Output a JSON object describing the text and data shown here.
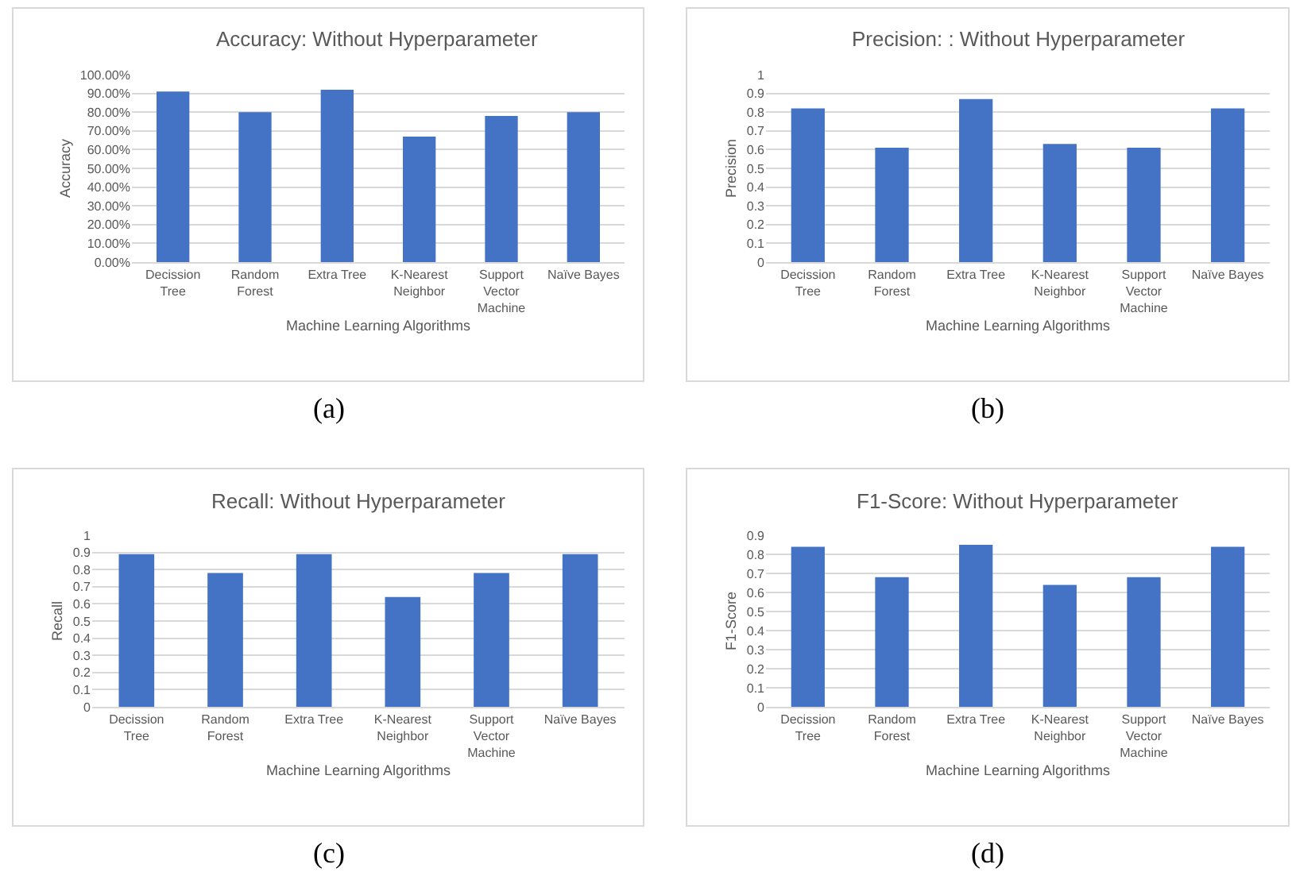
{
  "chart_data": [
    {
      "type": "bar",
      "title": "Accuracy: Without Hyperparameter",
      "xlabel": "Machine Learning Algorithms",
      "ylabel": "Accuracy",
      "categories": [
        "Decission Tree",
        "Random Forest",
        "Extra Tree",
        "K-Nearest Neighbor",
        "Support Vector Machine",
        "Naïve Bayes"
      ],
      "values": [
        91,
        80,
        92,
        67,
        78,
        80
      ],
      "color": "#4472c4",
      "ylim": [
        0,
        100
      ],
      "yticks": [
        {
          "value": 0,
          "label": "0.00%"
        },
        {
          "value": 10,
          "label": "10.00%"
        },
        {
          "value": 20,
          "label": "20.00%"
        },
        {
          "value": 30,
          "label": "30.00%"
        },
        {
          "value": 40,
          "label": "40.00%"
        },
        {
          "value": 50,
          "label": "50.00%"
        },
        {
          "value": 60,
          "label": "60.00%"
        },
        {
          "value": 70,
          "label": "70.00%"
        },
        {
          "value": 80,
          "label": "80.00%"
        },
        {
          "value": 90,
          "label": "90.00%"
        },
        {
          "value": 100,
          "label": "100.00%"
        }
      ],
      "grid": "y",
      "annotations": [
        "(a)"
      ]
    },
    {
      "type": "bar",
      "title": "Precision: : Without Hyperparameter",
      "xlabel": "Machine Learning Algorithms",
      "ylabel": "Precision",
      "categories": [
        "Decission Tree",
        "Random Forest",
        "Extra Tree",
        "K-Nearest Neighbor",
        "Support Vector Machine",
        "Naïve Bayes"
      ],
      "values": [
        0.82,
        0.61,
        0.87,
        0.63,
        0.61,
        0.82
      ],
      "color": "#4472c4",
      "ylim": [
        0,
        1
      ],
      "yticks": [
        0,
        0.1,
        0.2,
        0.3,
        0.4,
        0.5,
        0.6,
        0.7,
        0.8,
        0.9,
        1
      ],
      "grid": "y",
      "annotations": [
        "(b)"
      ]
    },
    {
      "type": "bar",
      "title": "Recall: Without Hyperparameter",
      "xlabel": "Machine Learning Algorithms",
      "ylabel": "Recall",
      "categories": [
        "Decission Tree",
        "Random Forest",
        "Extra Tree",
        "K-Nearest Neighbor",
        "Support Vector Machine",
        "Naïve Bayes"
      ],
      "values": [
        0.89,
        0.78,
        0.89,
        0.64,
        0.78,
        0.89
      ],
      "color": "#4472c4",
      "ylim": [
        0,
        1
      ],
      "yticks": [
        0,
        0.1,
        0.2,
        0.3,
        0.4,
        0.5,
        0.6,
        0.7,
        0.8,
        0.9,
        1
      ],
      "grid": "y",
      "annotations": [
        "(c)"
      ]
    },
    {
      "type": "bar",
      "title": "F1-Score: Without Hyperparameter",
      "xlabel": "Machine Learning Algorithms",
      "ylabel": "F1-Score",
      "categories": [
        "Decission Tree",
        "Random Forest",
        "Extra Tree",
        "K-Nearest Neighbor",
        "Support Vector Machine",
        "Naïve Bayes"
      ],
      "values": [
        0.84,
        0.68,
        0.85,
        0.64,
        0.68,
        0.84
      ],
      "color": "#4472c4",
      "ylim": [
        0,
        0.9
      ],
      "yticks": [
        0,
        0.1,
        0.2,
        0.3,
        0.4,
        0.5,
        0.6,
        0.7,
        0.8,
        0.9
      ],
      "grid": "y",
      "annotations": [
        "(d)"
      ]
    }
  ]
}
